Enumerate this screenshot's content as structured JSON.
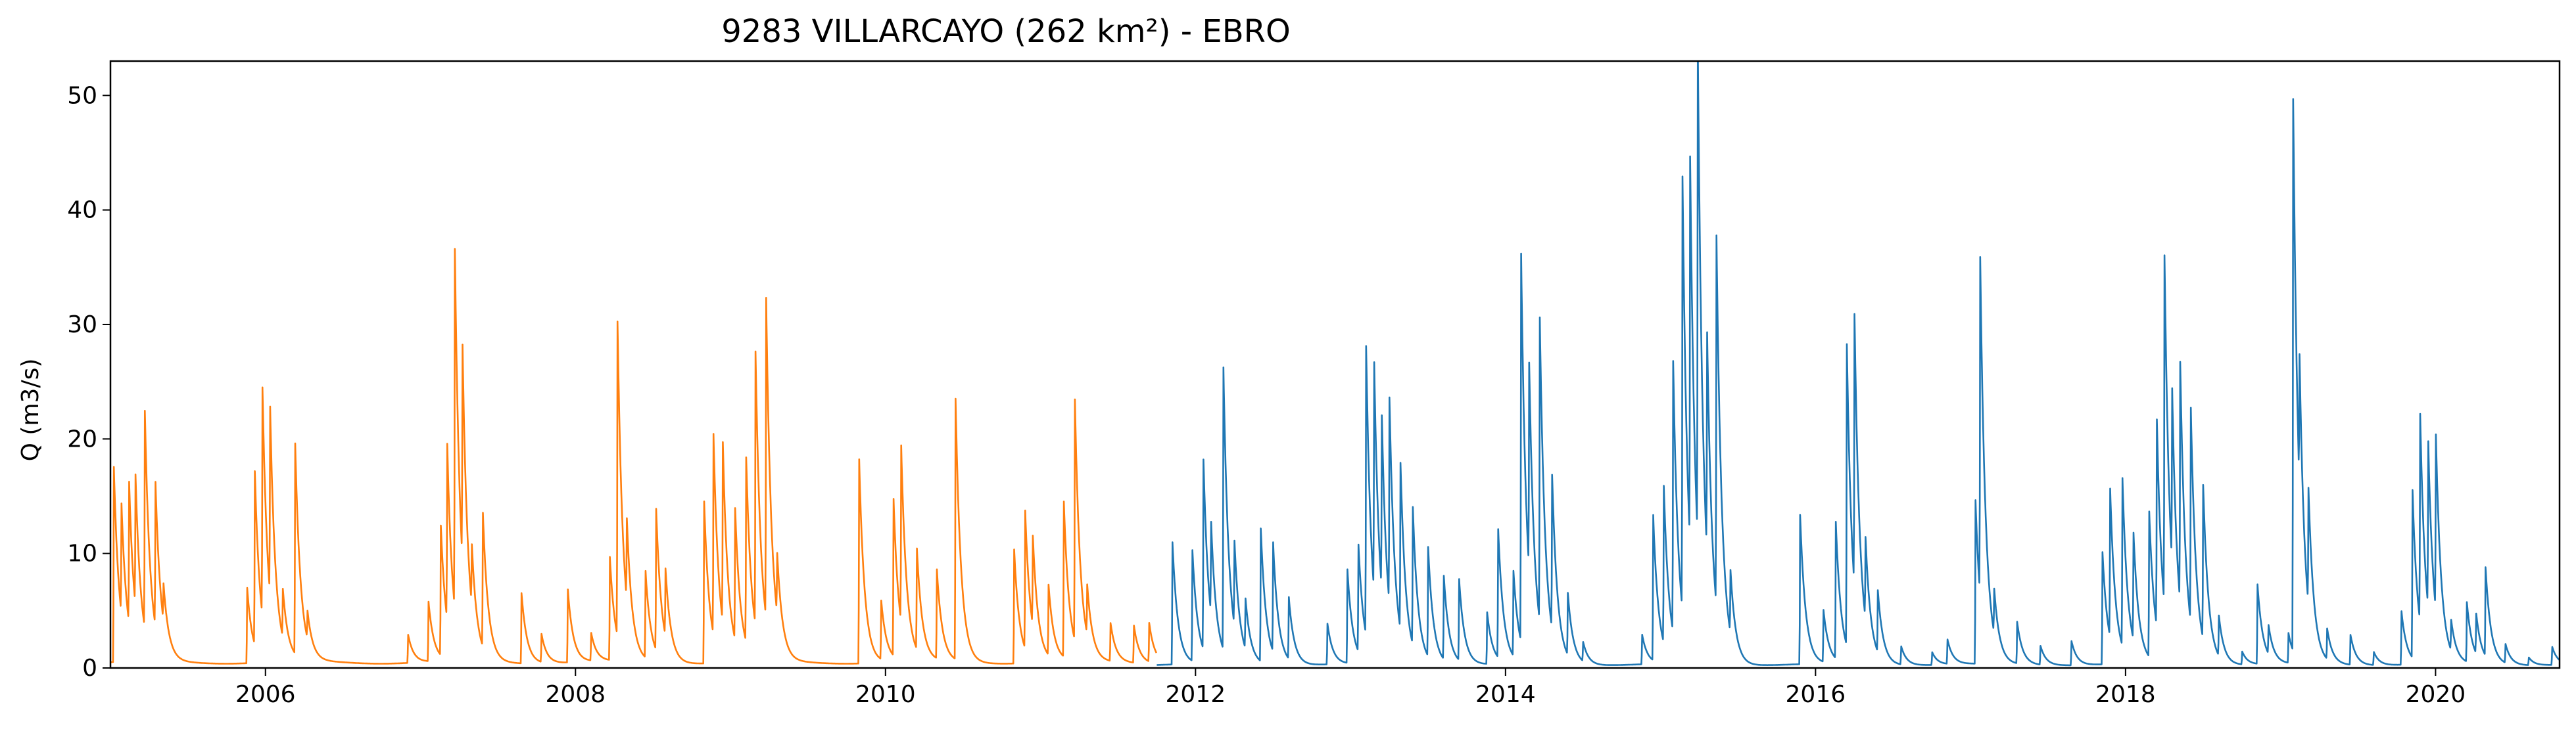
{
  "chart_data": {
    "type": "line",
    "title": "9283 VILLARCAYO (262 km²) - EBRO",
    "xlabel": "",
    "ylabel": "Q (m3/s)",
    "xlim": [
      2005.0,
      2020.8
    ],
    "ylim": [
      0,
      53
    ],
    "grid": false,
    "x_ticks": [
      2006,
      2008,
      2010,
      2012,
      2014,
      2016,
      2018,
      2020
    ],
    "x_tick_labels": [
      "2006",
      "2008",
      "2010",
      "2012",
      "2014",
      "2016",
      "2018",
      "2020"
    ],
    "y_ticks": [
      0,
      10,
      20,
      30,
      40,
      50
    ],
    "y_tick_labels": [
      "0",
      "10",
      "20",
      "30",
      "40",
      "50"
    ],
    "series": [
      {
        "color": "#ff7f0e",
        "x_range": [
          2005.0,
          2011.75
        ],
        "baseflow": 0.5,
        "peaks": [
          [
            2005.02,
            18.5
          ],
          [
            2005.07,
            10.5
          ],
          [
            2005.12,
            13.0
          ],
          [
            2005.16,
            12.5
          ],
          [
            2005.22,
            20.5
          ],
          [
            2005.29,
            13.2
          ],
          [
            2005.34,
            4.0
          ],
          [
            2005.88,
            7.5
          ],
          [
            2005.93,
            16.3
          ],
          [
            2005.98,
            20.9
          ],
          [
            2006.03,
            17.0
          ],
          [
            2006.11,
            5.0
          ],
          [
            2006.19,
            19.8
          ],
          [
            2006.27,
            3.0
          ],
          [
            2006.92,
            3.0
          ],
          [
            2007.05,
            6.0
          ],
          [
            2007.13,
            12.3
          ],
          [
            2007.17,
            17.0
          ],
          [
            2007.22,
            33.6
          ],
          [
            2007.27,
            20.0
          ],
          [
            2007.33,
            6.0
          ],
          [
            2007.4,
            13.1
          ],
          [
            2007.65,
            7.0
          ],
          [
            2007.78,
            3.0
          ],
          [
            2007.95,
            7.0
          ],
          [
            2008.1,
            3.0
          ],
          [
            2008.22,
            10.0
          ],
          [
            2008.27,
            28.9
          ],
          [
            2008.33,
            8.0
          ],
          [
            2008.45,
            8.5
          ],
          [
            2008.52,
            13.0
          ],
          [
            2008.58,
            6.5
          ],
          [
            2008.83,
            14.7
          ],
          [
            2008.89,
            18.2
          ],
          [
            2008.95,
            16.5
          ],
          [
            2009.03,
            12.0
          ],
          [
            2009.1,
            17.2
          ],
          [
            2009.16,
            25.5
          ],
          [
            2009.23,
            28.5
          ],
          [
            2009.3,
            6.0
          ],
          [
            2009.83,
            18.4
          ],
          [
            2009.97,
            6.0
          ],
          [
            2010.05,
            15.0
          ],
          [
            2010.1,
            16.5
          ],
          [
            2010.2,
            10.0
          ],
          [
            2010.33,
            8.6
          ],
          [
            2010.45,
            24.6
          ],
          [
            2010.83,
            10.5
          ],
          [
            2010.9,
            13.0
          ],
          [
            2010.95,
            8.5
          ],
          [
            2011.05,
            7.0
          ],
          [
            2011.15,
            14.3
          ],
          [
            2011.22,
            22.7
          ],
          [
            2011.3,
            5.0
          ],
          [
            2011.45,
            4.0
          ],
          [
            2011.6,
            4.0
          ],
          [
            2011.7,
            4.0
          ]
        ]
      },
      {
        "color": "#1f77b4",
        "x_range": [
          2011.75,
          2020.8
        ],
        "baseflow": 0.3,
        "peaks": [
          [
            2011.85,
            11.4
          ],
          [
            2011.98,
            10.0
          ],
          [
            2012.05,
            17.5
          ],
          [
            2012.1,
            8.5
          ],
          [
            2012.18,
            25.0
          ],
          [
            2012.25,
            8.0
          ],
          [
            2012.32,
            5.0
          ],
          [
            2012.42,
            12.3
          ],
          [
            2012.5,
            10.0
          ],
          [
            2012.6,
            6.0
          ],
          [
            2012.85,
            4.0
          ],
          [
            2012.98,
            8.5
          ],
          [
            2013.05,
            10.0
          ],
          [
            2013.1,
            26.0
          ],
          [
            2013.15,
            22.0
          ],
          [
            2013.2,
            16.5
          ],
          [
            2013.25,
            19.0
          ],
          [
            2013.32,
            16.0
          ],
          [
            2013.4,
            13.0
          ],
          [
            2013.5,
            10.0
          ],
          [
            2013.6,
            8.0
          ],
          [
            2013.7,
            7.5
          ],
          [
            2013.88,
            5.0
          ],
          [
            2013.95,
            12.4
          ],
          [
            2014.05,
            8.0
          ],
          [
            2014.1,
            34.8
          ],
          [
            2014.15,
            20.0
          ],
          [
            2014.22,
            27.8
          ],
          [
            2014.3,
            14.0
          ],
          [
            2014.4,
            6.0
          ],
          [
            2014.5,
            2.0
          ],
          [
            2014.88,
            3.0
          ],
          [
            2014.95,
            14.0
          ],
          [
            2015.02,
            14.5
          ],
          [
            2015.08,
            25.0
          ],
          [
            2015.14,
            40.1
          ],
          [
            2015.19,
            35.3
          ],
          [
            2015.24,
            44.2
          ],
          [
            2015.3,
            20.0
          ],
          [
            2015.36,
            33.5
          ],
          [
            2015.45,
            6.0
          ],
          [
            2015.9,
            13.6
          ],
          [
            2016.05,
            5.0
          ],
          [
            2016.13,
            12.5
          ],
          [
            2016.2,
            28.2
          ],
          [
            2016.25,
            25.0
          ],
          [
            2016.32,
            8.0
          ],
          [
            2016.4,
            6.0
          ],
          [
            2016.55,
            2.0
          ],
          [
            2016.75,
            1.5
          ],
          [
            2016.85,
            2.5
          ],
          [
            2017.03,
            15.5
          ],
          [
            2017.06,
            31.8
          ],
          [
            2017.15,
            4.5
          ],
          [
            2017.3,
            4.0
          ],
          [
            2017.45,
            2.0
          ],
          [
            2017.65,
            2.5
          ],
          [
            2017.85,
            10.5
          ],
          [
            2017.9,
            13.5
          ],
          [
            2017.98,
            15.0
          ],
          [
            2018.05,
            10.0
          ],
          [
            2018.15,
            14.0
          ],
          [
            2018.2,
            19.5
          ],
          [
            2018.25,
            32.0
          ],
          [
            2018.3,
            16.0
          ],
          [
            2018.35,
            23.0
          ],
          [
            2018.42,
            19.7
          ],
          [
            2018.5,
            14.0
          ],
          [
            2018.6,
            4.0
          ],
          [
            2018.75,
            1.5
          ],
          [
            2018.85,
            7.5
          ],
          [
            2018.92,
            3.0
          ],
          [
            2019.05,
            3.0
          ],
          [
            2019.08,
            50.6
          ],
          [
            2019.12,
            13.0
          ],
          [
            2019.18,
            10.5
          ],
          [
            2019.3,
            3.0
          ],
          [
            2019.45,
            3.0
          ],
          [
            2019.6,
            1.5
          ],
          [
            2019.78,
            5.0
          ],
          [
            2019.85,
            15.5
          ],
          [
            2019.9,
            18.8
          ],
          [
            2019.95,
            16.0
          ],
          [
            2020.0,
            16.5
          ],
          [
            2020.1,
            3.0
          ],
          [
            2020.2,
            5.8
          ],
          [
            2020.26,
            4.0
          ],
          [
            2020.32,
            8.6
          ],
          [
            2020.45,
            2.0
          ],
          [
            2020.6,
            1.0
          ],
          [
            2020.75,
            2.0
          ]
        ]
      }
    ]
  }
}
